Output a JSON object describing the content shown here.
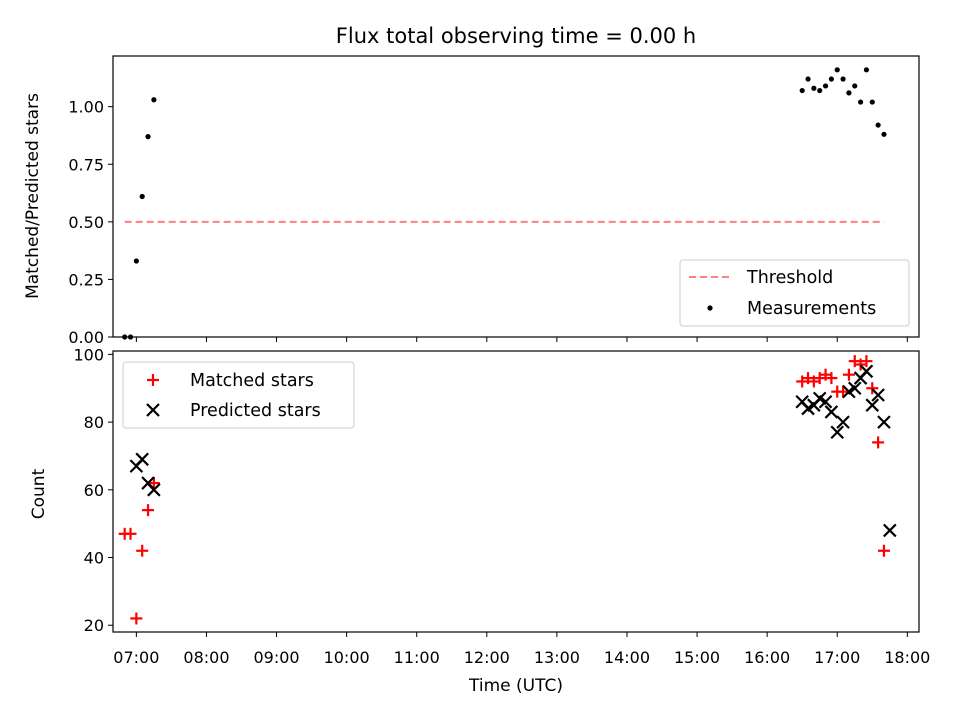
{
  "chart_data": {
    "title": "Flux total observing time = 0.00 h",
    "xlabel": "Time (UTC)",
    "x_ticks": [
      "07:00",
      "08:00",
      "09:00",
      "10:00",
      "11:00",
      "12:00",
      "13:00",
      "14:00",
      "15:00",
      "16:00",
      "17:00",
      "18:00"
    ],
    "xlim": [
      "06:40",
      "18:10"
    ],
    "panels": [
      {
        "type": "scatter",
        "ylabel": "Matched/Predicted stars",
        "ylim": [
          0,
          1.22
        ],
        "y_ticks": [
          "0.00",
          "0.25",
          "0.50",
          "0.75",
          "1.00"
        ],
        "y_tick_values": [
          0,
          0.25,
          0.5,
          0.75,
          1.0
        ],
        "legend": {
          "placement": "lower-right",
          "entries": [
            "Threshold",
            "Measurements"
          ]
        },
        "threshold": {
          "name": "Threshold",
          "value": 0.5,
          "x_start": "06:50",
          "x_end": "17:40",
          "color": "#ff7f7f",
          "style": "dashed"
        },
        "series": [
          {
            "name": "Measurements",
            "marker": "dot",
            "color": "#000000",
            "points": [
              [
                "06:50",
                0.0
              ],
              [
                "06:55",
                0.0
              ],
              [
                "07:00",
                0.33
              ],
              [
                "07:05",
                0.61
              ],
              [
                "07:10",
                0.87
              ],
              [
                "07:15",
                1.03
              ],
              [
                "16:30",
                1.07
              ],
              [
                "16:35",
                1.12
              ],
              [
                "16:40",
                1.08
              ],
              [
                "16:45",
                1.07
              ],
              [
                "16:50",
                1.09
              ],
              [
                "16:55",
                1.12
              ],
              [
                "17:00",
                1.16
              ],
              [
                "17:05",
                1.12
              ],
              [
                "17:10",
                1.06
              ],
              [
                "17:15",
                1.09
              ],
              [
                "17:20",
                1.02
              ],
              [
                "17:25",
                1.16
              ],
              [
                "17:30",
                1.02
              ],
              [
                "17:35",
                0.92
              ],
              [
                "17:40",
                0.88
              ]
            ]
          }
        ]
      },
      {
        "type": "scatter",
        "ylabel": "Count",
        "ylim": [
          18,
          101
        ],
        "y_ticks": [
          "20",
          "40",
          "60",
          "80",
          "100"
        ],
        "y_tick_values": [
          20,
          40,
          60,
          80,
          100
        ],
        "legend": {
          "placement": "upper-left",
          "entries": [
            "Matched stars",
            "Predicted stars"
          ]
        },
        "series": [
          {
            "name": "Matched stars",
            "marker": "plus",
            "color": "#ff0000",
            "points": [
              [
                "06:50",
                47
              ],
              [
                "06:55",
                47
              ],
              [
                "07:00",
                22
              ],
              [
                "07:05",
                42
              ],
              [
                "07:10",
                54
              ],
              [
                "07:15",
                62
              ],
              [
                "16:30",
                92
              ],
              [
                "16:35",
                93
              ],
              [
                "16:40",
                92
              ],
              [
                "16:45",
                93
              ],
              [
                "16:50",
                94
              ],
              [
                "16:55",
                93
              ],
              [
                "17:00",
                89
              ],
              [
                "17:05",
                89
              ],
              [
                "17:10",
                94
              ],
              [
                "17:15",
                98
              ],
              [
                "17:20",
                97
              ],
              [
                "17:25",
                98
              ],
              [
                "17:30",
                90
              ],
              [
                "17:35",
                74
              ],
              [
                "17:40",
                42
              ]
            ]
          },
          {
            "name": "Predicted stars",
            "marker": "x",
            "color": "#000000",
            "points": [
              [
                "07:00",
                67
              ],
              [
                "07:05",
                69
              ],
              [
                "07:10",
                62
              ],
              [
                "07:15",
                60
              ],
              [
                "16:30",
                86
              ],
              [
                "16:35",
                84
              ],
              [
                "16:40",
                85
              ],
              [
                "16:45",
                87
              ],
              [
                "16:50",
                86
              ],
              [
                "16:55",
                83
              ],
              [
                "17:00",
                77
              ],
              [
                "17:05",
                80
              ],
              [
                "17:10",
                89
              ],
              [
                "17:15",
                90
              ],
              [
                "17:20",
                93
              ],
              [
                "17:25",
                95
              ],
              [
                "17:30",
                85
              ],
              [
                "17:35",
                88
              ],
              [
                "17:40",
                80
              ],
              [
                "17:45",
                48
              ]
            ]
          }
        ]
      }
    ]
  }
}
